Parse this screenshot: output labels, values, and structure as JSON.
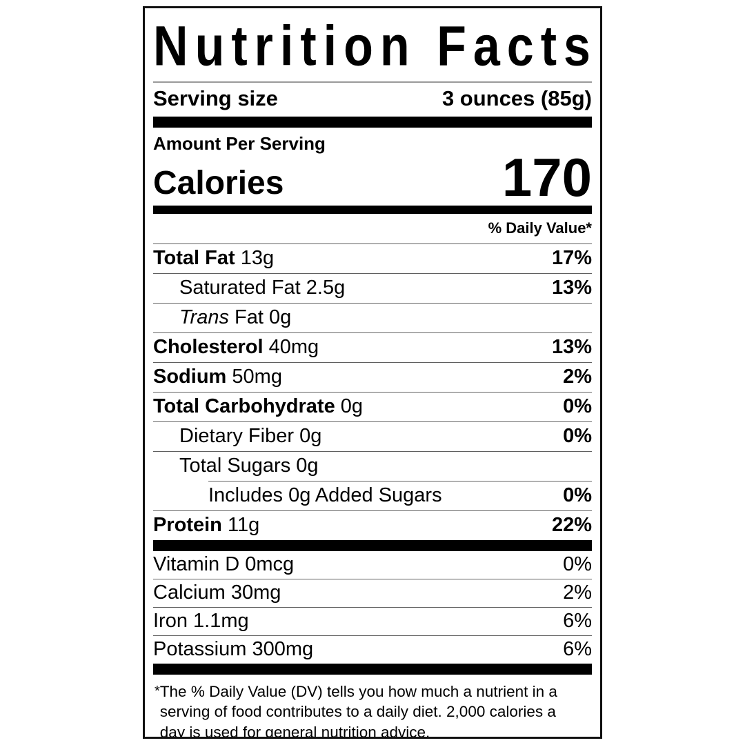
{
  "label": {
    "title": "Nutrition Facts",
    "serving": {
      "label": "Serving size",
      "value": "3 ounces (85g)"
    },
    "amount_per_serving": "Amount Per Serving",
    "calories": {
      "label": "Calories",
      "value": "170"
    },
    "daily_value_header": "% Daily Value*",
    "nutrients": [
      {
        "name": "Total Fat",
        "amount": "13g",
        "dv": "17%"
      },
      {
        "name": "Saturated Fat",
        "amount": "2.5g",
        "dv": "13%"
      },
      {
        "name_italic": "Trans",
        "name": "Fat",
        "amount": "0g",
        "dv": ""
      },
      {
        "name": "Cholesterol",
        "amount": "40mg",
        "dv": "13%"
      },
      {
        "name": "Sodium",
        "amount": "50mg",
        "dv": "2%"
      },
      {
        "name": "Total Carbohydrate",
        "amount": "0g",
        "dv": "0%"
      },
      {
        "name": "Dietary Fiber",
        "amount": "0g",
        "dv": "0%"
      },
      {
        "name": "Total Sugars",
        "amount": "0g",
        "dv": ""
      },
      {
        "name": "Includes 0g Added Sugars",
        "amount": "",
        "dv": "0%"
      },
      {
        "name": "Protein",
        "amount": "11g",
        "dv": "22%"
      }
    ],
    "vitamins": [
      {
        "name": "Vitamin D",
        "amount": "0mcg",
        "dv": "0%"
      },
      {
        "name": "Calcium",
        "amount": "30mg",
        "dv": "2%"
      },
      {
        "name": "Iron",
        "amount": "1.1mg",
        "dv": "6%"
      },
      {
        "name": "Potassium",
        "amount": "300mg",
        "dv": "6%"
      }
    ],
    "footnote_star": "*",
    "footnote": "The % Daily Value (DV) tells you how much a nutrient in a serving of food contributes to a daily diet. 2,000 calories a day is used for general nutrition advice.",
    "colors": {
      "text": "#000000",
      "background": "#ffffff",
      "border": "#111111",
      "thick_bar": "#000000",
      "hairline": "#5f5f5f",
      "title_rule": "#9a9a9a"
    }
  }
}
